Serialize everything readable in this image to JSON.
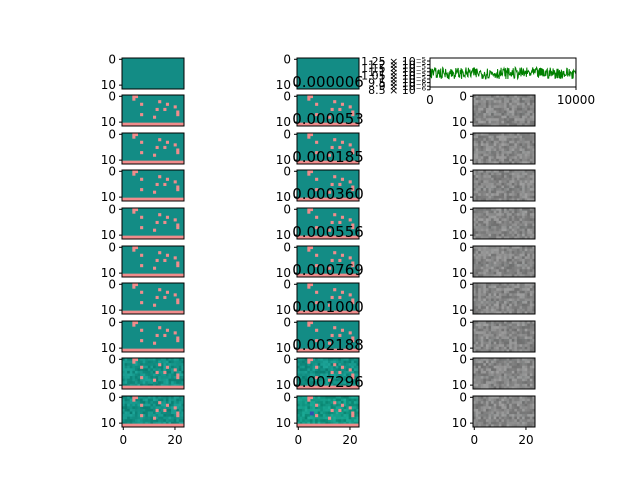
{
  "figure": {
    "colors": {
      "teal": "#138c85",
      "teal_light": "#2aa59a",
      "salmon": "#f08c8c",
      "gray": "#888888",
      "line_green": "#008000",
      "axes": "#000000"
    }
  },
  "chart_data": [
    {
      "type": "heatmap",
      "description_panel": "left column",
      "rows": 10,
      "grid_shape": [
        12,
        24
      ],
      "x_ticks": [
        "0",
        "20"
      ],
      "y_ticks": [
        "0",
        "10"
      ]
    },
    {
      "type": "heatmap",
      "description_panel": "middle column",
      "rows": 10,
      "grid_shape": [
        12,
        24
      ],
      "x_ticks": [
        "0",
        "20"
      ],
      "y_ticks": [
        "0",
        "10"
      ],
      "panel_values": [
        "0.000006",
        "0.000053",
        "0.000185",
        "0.000360",
        "0.000556",
        "0.000769",
        "0.001000",
        "0.002188",
        "0.007296"
      ]
    },
    {
      "type": "line",
      "description_panel": "top right trace",
      "x_ticks": [
        "0",
        "10000"
      ],
      "xlim": [
        0,
        10000
      ],
      "y_ticks": [
        "1.25 × 10⁻⁵",
        "1.2 × 10⁻⁵",
        "1.15 × 10⁻⁵",
        "1.1 × 10⁻⁵",
        "1.05 × 10⁻⁵",
        "1 × 10⁻⁵",
        "9.5 × 10⁻⁶",
        "9 × 10⁻⁶",
        "8.5 × 10⁻⁶"
      ],
      "ylim": [
        8.5e-06,
        1.25e-05
      ],
      "series_color": "#008000"
    },
    {
      "type": "heatmap",
      "description_panel": "right column noise",
      "rows": 9,
      "grid_shape": [
        12,
        24
      ],
      "x_ticks": [
        "0",
        "20"
      ],
      "y_ticks": [
        "0",
        "10"
      ]
    }
  ]
}
